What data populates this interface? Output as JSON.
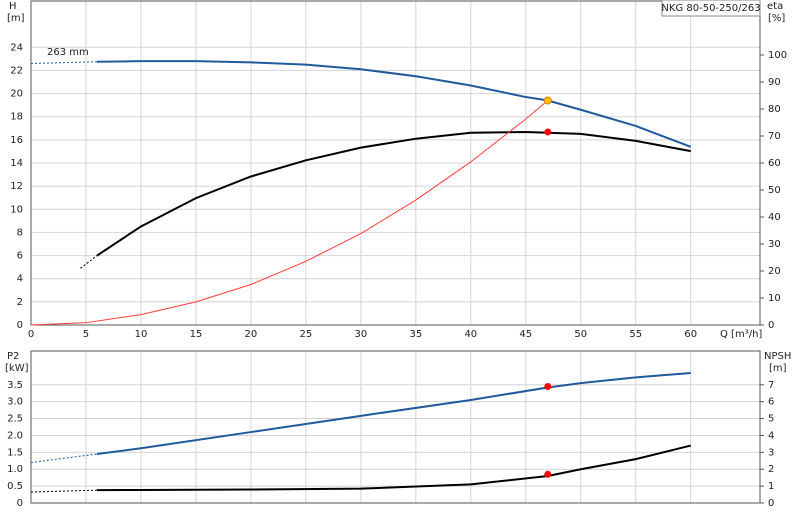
{
  "chart_data": [
    {
      "type": "line",
      "title": "NKG 80-50-250/263",
      "ylabel": "H",
      "yunit": "[m]",
      "y2label": "eta",
      "y2unit": "[%]",
      "xlabel": "Q [m³/h]",
      "annotation": "263 mm",
      "xlim": [
        0,
        66.3
      ],
      "ylim": [
        0,
        28
      ],
      "y2lim": [
        0,
        120
      ],
      "grid": true,
      "xticks": [
        0,
        5,
        10,
        15,
        20,
        25,
        30,
        35,
        40,
        45,
        50,
        55,
        60
      ],
      "yticks": [
        0,
        2,
        4,
        6,
        8,
        10,
        12,
        14,
        16,
        18,
        20,
        22,
        24
      ],
      "y2ticks": [
        0,
        10,
        20,
        30,
        40,
        50,
        60,
        70,
        80,
        90,
        100
      ],
      "series": [
        {
          "color": "#1f5a9c",
          "style": "dashed",
          "x": [
            0,
            6
          ],
          "values": [
            22.6,
            22.75
          ]
        },
        {
          "color": "#1f5a9c",
          "style": "solid",
          "x": [
            6,
            10,
            15,
            20,
            25,
            30,
            35,
            40,
            45,
            47,
            50,
            55,
            60
          ],
          "values": [
            22.75,
            22.8,
            22.8,
            22.7,
            22.5,
            22.1,
            21.5,
            20.7,
            19.7,
            19.4,
            18.6,
            17.2,
            15.4
          ]
        },
        {
          "color": "#000000",
          "style": "dashed",
          "axis": "y2",
          "x": [
            4.5,
            6
          ],
          "values": [
            21,
            25.7
          ]
        },
        {
          "color": "#000000",
          "style": "solid",
          "axis": "y2",
          "x": [
            6,
            10,
            15,
            20,
            25,
            30,
            35,
            40,
            45,
            47,
            50,
            55,
            60
          ],
          "values": [
            25.7,
            36.5,
            47,
            55,
            61,
            65.7,
            69,
            71.2,
            71.5,
            71.2,
            70.8,
            68.2,
            64.4
          ]
        },
        {
          "color": "#ff3b3b",
          "style": "thin",
          "x": [
            0,
            5,
            10,
            15,
            20,
            25,
            30,
            35,
            40,
            45,
            47
          ],
          "values": [
            0,
            0.2,
            0.9,
            2,
            3.5,
            5.5,
            7.9,
            10.8,
            14.1,
            17.8,
            19.4
          ]
        },
        {
          "color": "#ffc000",
          "style": "points",
          "x": [
            47
          ],
          "values": [
            19.4
          ]
        },
        {
          "color": "#ff0000",
          "style": "points",
          "axis": "y2",
          "x": [
            47
          ],
          "values": [
            71.5
          ]
        }
      ]
    },
    {
      "type": "line",
      "ylabel": "P2",
      "yunit": "[kW]",
      "y2label": "NPSH",
      "y2unit": "[m]",
      "xlim": [
        0,
        66.3
      ],
      "ylim": [
        0,
        4.5
      ],
      "y2lim": [
        0,
        9
      ],
      "grid": true,
      "xticks": [
        0,
        5,
        10,
        15,
        20,
        25,
        30,
        35,
        40,
        45,
        50,
        55,
        60
      ],
      "yticks": [
        0,
        0.5,
        {
          "value": 1,
          "label": "1.0"
        },
        1.5,
        {
          "value": 2,
          "label": "2.0"
        },
        2.5,
        {
          "value": 3,
          "label": "3.0"
        },
        3.5
      ],
      "y2ticks": [
        0,
        1,
        2,
        3,
        4,
        5,
        6,
        7
      ],
      "series": [
        {
          "color": "#1f5a9c",
          "style": "dashed",
          "x": [
            0,
            6
          ],
          "values": [
            1.2,
            1.45
          ]
        },
        {
          "color": "#1f5a9c",
          "style": "solid",
          "x": [
            6,
            10,
            20,
            30,
            40,
            47,
            50,
            55,
            60
          ],
          "values": [
            1.45,
            1.62,
            2.1,
            2.58,
            3.05,
            3.42,
            3.55,
            3.72,
            3.85
          ]
        },
        {
          "color": "#000000",
          "style": "dashed",
          "axis": "y2",
          "x": [
            0,
            6
          ],
          "values": [
            0.65,
            0.76
          ]
        },
        {
          "color": "#000000",
          "style": "solid",
          "axis": "y2",
          "x": [
            6,
            10,
            20,
            30,
            40,
            47,
            50,
            55,
            60
          ],
          "values": [
            0.76,
            0.77,
            0.8,
            0.85,
            1.1,
            1.6,
            2,
            2.6,
            3.4
          ]
        },
        {
          "color": "#ff0000",
          "style": "points",
          "x": [
            47
          ],
          "values": [
            3.45
          ]
        },
        {
          "color": "#ff0000",
          "style": "points",
          "axis": "y2",
          "x": [
            47
          ],
          "values": [
            1.7
          ]
        }
      ]
    }
  ]
}
